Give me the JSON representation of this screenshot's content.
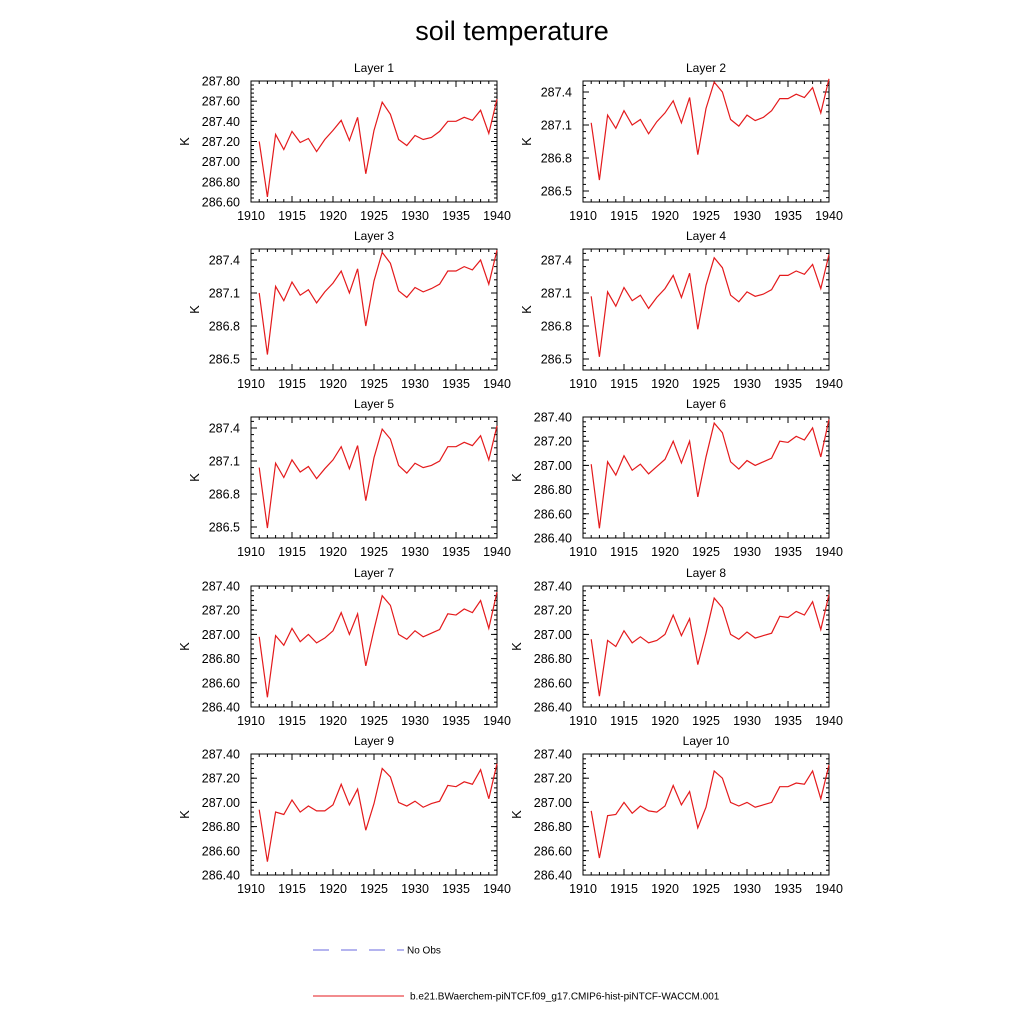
{
  "title": "soil temperature",
  "chart_data": {
    "type": "line",
    "title": "soil temperature",
    "x": [
      1911,
      1912,
      1913,
      1914,
      1915,
      1916,
      1917,
      1918,
      1919,
      1920,
      1921,
      1922,
      1923,
      1924,
      1925,
      1926,
      1927,
      1928,
      1929,
      1930,
      1931,
      1932,
      1933,
      1934,
      1935,
      1936,
      1937,
      1938,
      1939,
      1940
    ],
    "xlim": [
      1910,
      1940
    ],
    "xticks": [
      "1910",
      "1915",
      "1920",
      "1925",
      "1930",
      "1935",
      "1940"
    ],
    "grid": false,
    "legend_placement": "bottom",
    "legend": [
      {
        "name": "No Obs",
        "color": "#6a6adf",
        "style": "dashed"
      },
      {
        "name": "b.e21.BWaerchem-piNTCF.f09_g17.CMIP6-hist-piNTCF-WACCM.001",
        "color": "#e41a1c",
        "style": "solid"
      }
    ],
    "panels": [
      {
        "title": "Layer 1",
        "ylabel": "K",
        "ylim": [
          286.6,
          287.8
        ],
        "yticks": [
          "286.60",
          "286.80",
          "287.00",
          "287.20",
          "287.40",
          "287.60",
          "287.80"
        ],
        "series": [
          {
            "color": "#e41a1c",
            "values": [
              287.2,
              286.65,
              287.27,
              287.12,
              287.3,
              287.19,
              287.23,
              287.1,
              287.22,
              287.31,
              287.41,
              287.21,
              287.44,
              286.88,
              287.31,
              287.59,
              287.47,
              287.22,
              287.16,
              287.26,
              287.22,
              287.24,
              287.3,
              287.4,
              287.4,
              287.44,
              287.41,
              287.51,
              287.28,
              287.62
            ]
          }
        ]
      },
      {
        "title": "Layer 2",
        "ylabel": "K",
        "ylim": [
          286.4,
          287.5
        ],
        "yticks": [
          "286.5",
          "286.8",
          "287.1",
          "287.4"
        ],
        "series": [
          {
            "color": "#e41a1c",
            "values": [
              287.12,
              286.6,
              287.19,
              287.07,
              287.23,
              287.1,
              287.15,
              287.02,
              287.13,
              287.21,
              287.32,
              287.12,
              287.35,
              286.83,
              287.25,
              287.49,
              287.4,
              287.15,
              287.09,
              287.19,
              287.14,
              287.17,
              287.23,
              287.34,
              287.34,
              287.38,
              287.35,
              287.44,
              287.21,
              287.52
            ]
          }
        ]
      },
      {
        "title": "Layer 3",
        "ylabel": "K",
        "ylim": [
          286.4,
          287.5
        ],
        "yticks": [
          "286.5",
          "286.8",
          "287.1",
          "287.4"
        ],
        "series": [
          {
            "color": "#e41a1c",
            "values": [
              287.1,
              286.54,
              287.16,
              287.03,
              287.2,
              287.08,
              287.13,
              287.01,
              287.11,
              287.19,
              287.3,
              287.1,
              287.32,
              286.8,
              287.21,
              287.47,
              287.37,
              287.12,
              287.06,
              287.15,
              287.11,
              287.14,
              287.18,
              287.3,
              287.3,
              287.34,
              287.31,
              287.4,
              287.18,
              287.49
            ]
          }
        ]
      },
      {
        "title": "Layer 4",
        "ylabel": "K",
        "ylim": [
          286.4,
          287.5
        ],
        "yticks": [
          "286.5",
          "286.8",
          "287.1",
          "287.4"
        ],
        "series": [
          {
            "color": "#e41a1c",
            "values": [
              287.07,
              286.52,
              287.11,
              286.98,
              287.15,
              287.03,
              287.08,
              286.96,
              287.06,
              287.14,
              287.26,
              287.06,
              287.28,
              286.77,
              287.17,
              287.42,
              287.33,
              287.08,
              287.02,
              287.11,
              287.07,
              287.09,
              287.13,
              287.26,
              287.26,
              287.3,
              287.27,
              287.36,
              287.14,
              287.45
            ]
          }
        ]
      },
      {
        "title": "Layer 5",
        "ylabel": "K",
        "ylim": [
          286.4,
          287.5
        ],
        "yticks": [
          "286.5",
          "286.8",
          "287.1",
          "287.4"
        ],
        "series": [
          {
            "color": "#e41a1c",
            "values": [
              287.04,
              286.49,
              287.08,
              286.95,
              287.11,
              287.0,
              287.05,
              286.94,
              287.03,
              287.11,
              287.23,
              287.03,
              287.24,
              286.74,
              287.13,
              287.39,
              287.3,
              287.06,
              286.99,
              287.08,
              287.04,
              287.06,
              287.1,
              287.23,
              287.23,
              287.27,
              287.24,
              287.33,
              287.11,
              287.42
            ]
          }
        ]
      },
      {
        "title": "Layer 6",
        "ylabel": "K",
        "ylim": [
          286.4,
          287.4
        ],
        "yticks": [
          "286.40",
          "286.60",
          "286.80",
          "287.00",
          "287.20",
          "287.40"
        ],
        "series": [
          {
            "color": "#e41a1c",
            "values": [
              287.01,
              286.48,
              287.03,
              286.92,
              287.08,
              286.96,
              287.01,
              286.93,
              286.99,
              287.05,
              287.2,
              287.02,
              287.2,
              286.74,
              287.07,
              287.35,
              287.27,
              287.03,
              286.97,
              287.04,
              287.0,
              287.03,
              287.06,
              287.2,
              287.19,
              287.24,
              287.21,
              287.31,
              287.07,
              287.38
            ]
          }
        ]
      },
      {
        "title": "Layer 7",
        "ylabel": "K",
        "ylim": [
          286.4,
          287.4
        ],
        "yticks": [
          "286.40",
          "286.60",
          "286.80",
          "287.00",
          "287.20",
          "287.40"
        ],
        "series": [
          {
            "color": "#e41a1c",
            "values": [
              286.98,
              286.48,
              286.99,
              286.91,
              287.05,
              286.94,
              287.0,
              286.93,
              286.97,
              287.03,
              287.18,
              287.0,
              287.17,
              286.74,
              287.04,
              287.32,
              287.24,
              287.0,
              286.96,
              287.03,
              286.98,
              287.01,
              287.04,
              287.17,
              287.16,
              287.21,
              287.18,
              287.28,
              287.05,
              287.35
            ]
          }
        ]
      },
      {
        "title": "Layer 8",
        "ylabel": "K",
        "ylim": [
          286.4,
          287.4
        ],
        "yticks": [
          "286.40",
          "286.60",
          "286.80",
          "287.00",
          "287.20",
          "287.40"
        ],
        "series": [
          {
            "color": "#e41a1c",
            "values": [
              286.96,
              286.49,
              286.95,
              286.9,
              287.03,
              286.93,
              286.98,
              286.93,
              286.95,
              287.0,
              287.16,
              286.99,
              287.13,
              286.75,
              287.01,
              287.3,
              287.22,
              287.0,
              286.96,
              287.02,
              286.97,
              286.99,
              287.01,
              287.15,
              287.14,
              287.19,
              287.16,
              287.27,
              287.04,
              287.33
            ]
          }
        ]
      },
      {
        "title": "Layer 9",
        "ylabel": "K",
        "ylim": [
          286.4,
          287.4
        ],
        "yticks": [
          "286.40",
          "286.60",
          "286.80",
          "287.00",
          "287.20",
          "287.40"
        ],
        "series": [
          {
            "color": "#e41a1c",
            "values": [
              286.94,
              286.51,
              286.92,
              286.9,
              287.02,
              286.92,
              286.97,
              286.93,
              286.93,
              286.98,
              287.15,
              286.98,
              287.11,
              286.77,
              286.99,
              287.28,
              287.21,
              287.0,
              286.97,
              287.01,
              286.96,
              286.99,
              287.01,
              287.14,
              287.13,
              287.17,
              287.15,
              287.27,
              287.03,
              287.32
            ]
          }
        ]
      },
      {
        "title": "Layer 10",
        "ylabel": "K",
        "ylim": [
          286.4,
          287.4
        ],
        "yticks": [
          "286.40",
          "286.60",
          "286.80",
          "287.00",
          "287.20",
          "287.40"
        ],
        "series": [
          {
            "color": "#e41a1c",
            "values": [
              286.93,
              286.54,
              286.89,
              286.9,
              287.0,
              286.91,
              286.97,
              286.93,
              286.92,
              286.97,
              287.14,
              286.98,
              287.09,
              286.79,
              286.96,
              287.26,
              287.2,
              287.0,
              286.97,
              287.0,
              286.96,
              286.98,
              287.0,
              287.13,
              287.13,
              287.16,
              287.15,
              287.26,
              287.03,
              287.31
            ]
          }
        ]
      }
    ]
  }
}
